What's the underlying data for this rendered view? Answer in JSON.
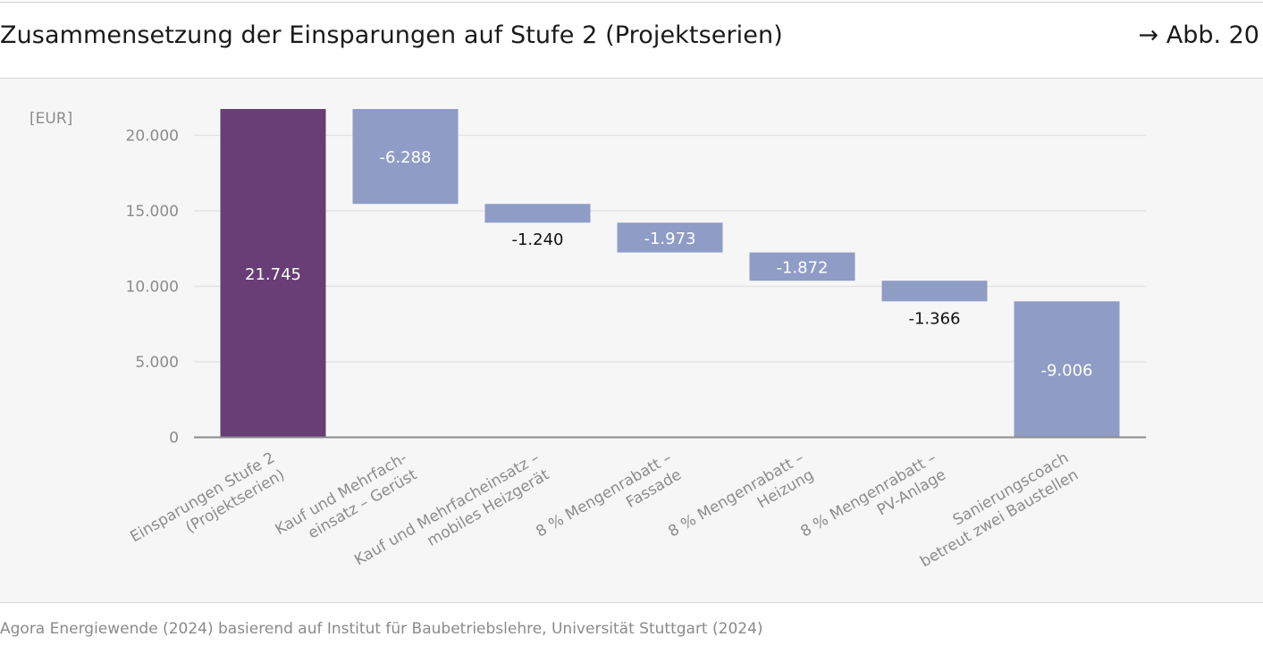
{
  "header": {
    "title": "Zusammensetzung der Einsparungen auf Stufe 2 (Projektserien)",
    "figure_ref": "→ Abb. 20"
  },
  "footer": {
    "source": "Agora Energiewende (2024) basierend auf Institut für Baubetriebslehre, Universität Stuttgart (2024)"
  },
  "colors": {
    "total": "#693d75",
    "step": "#8f9cc6",
    "grid": "#e3e3e3",
    "axis": "#8c8c8c",
    "tick_text": "#8c8c8c"
  },
  "chart_data": {
    "type": "bar",
    "subtype": "waterfall",
    "title": "Zusammensetzung der Einsparungen auf Stufe 2 (Projektserien)",
    "ylabel": "[EUR]",
    "ylim": [
      0,
      22000
    ],
    "yticks": [
      0,
      5000,
      10000,
      15000,
      20000
    ],
    "ytick_labels": [
      "0",
      "5.000",
      "10.000",
      "15.000",
      "20.000"
    ],
    "grid": true,
    "categories": [
      [
        "Einsparungen Stufe 2",
        "(Projektserien)"
      ],
      [
        "Kauf und Mehrfach-",
        "einsatz – Gerüst"
      ],
      [
        "Kauf und Mehrfacheinsatz –",
        "mobiles Heizgerät"
      ],
      [
        "8 % Mengenrabatt –",
        "Fassade"
      ],
      [
        "8 % Mengenrabatt –",
        "Heizung"
      ],
      [
        "8 % Mengenrabatt –",
        "PV-Anlage"
      ],
      [
        "Sanierungscoach",
        "betreut zwei Baustellen"
      ]
    ],
    "bars": [
      {
        "start": 0,
        "end": 21745,
        "kind": "total",
        "label": "21.745",
        "label_position": "inside"
      },
      {
        "start": 21745,
        "end": 15457,
        "kind": "step",
        "label": "-6.288",
        "label_position": "inside"
      },
      {
        "start": 15457,
        "end": 14217,
        "kind": "step",
        "label": "-1.240",
        "label_position": "below"
      },
      {
        "start": 14217,
        "end": 12244,
        "kind": "step",
        "label": "-1.973",
        "label_position": "inside"
      },
      {
        "start": 12244,
        "end": 10372,
        "kind": "step",
        "label": "-1.872",
        "label_position": "inside"
      },
      {
        "start": 10372,
        "end": 9006,
        "kind": "step",
        "label": "-1.366",
        "label_position": "below"
      },
      {
        "start": 9006,
        "end": 0,
        "kind": "step",
        "label": "-9.006",
        "label_position": "inside"
      }
    ]
  }
}
